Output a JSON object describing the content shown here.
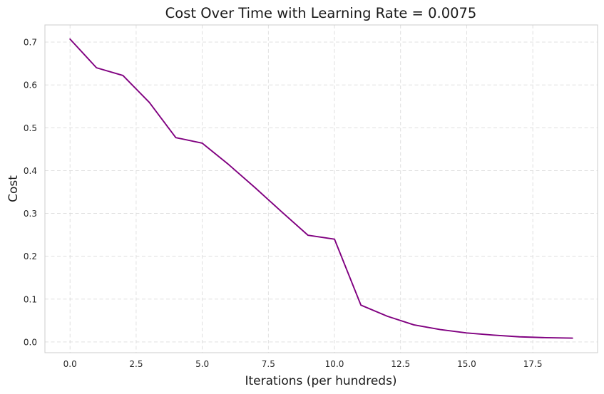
{
  "chart_data": {
    "type": "line",
    "title": "Cost Over Time with Learning Rate = 0.0075",
    "xlabel": "Iterations (per hundreds)",
    "ylabel": "Cost",
    "xlim": [
      -0.95,
      19.95
    ],
    "ylim": [
      -0.025,
      0.74
    ],
    "xticks": [
      0.0,
      2.5,
      5.0,
      7.5,
      10.0,
      12.5,
      15.0,
      17.5
    ],
    "xtick_labels": [
      "0.0",
      "2.5",
      "5.0",
      "7.5",
      "10.0",
      "12.5",
      "15.0",
      "17.5"
    ],
    "yticks": [
      0.0,
      0.1,
      0.2,
      0.3,
      0.4,
      0.5,
      0.6,
      0.7
    ],
    "ytick_labels": [
      "0.0",
      "0.1",
      "0.2",
      "0.3",
      "0.4",
      "0.5",
      "0.6",
      "0.7"
    ],
    "grid": true,
    "series": [
      {
        "color": "#800080",
        "x": [
          0,
          1,
          2,
          3,
          4,
          5,
          6,
          7,
          8,
          9,
          10,
          11,
          12,
          13,
          14,
          15,
          16,
          17,
          18,
          19
        ],
        "y": [
          0.707,
          0.64,
          0.622,
          0.559,
          0.477,
          0.464,
          0.414,
          0.36,
          0.304,
          0.249,
          0.24,
          0.086,
          0.06,
          0.04,
          0.029,
          0.021,
          0.016,
          0.012,
          0.01,
          0.009
        ]
      }
    ]
  }
}
